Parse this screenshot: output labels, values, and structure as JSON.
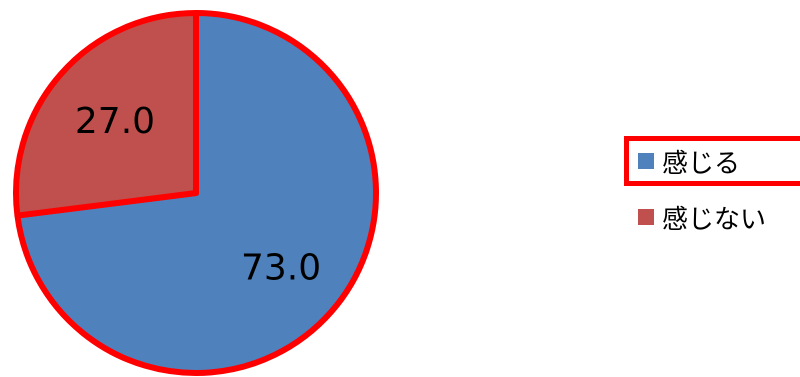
{
  "chart_data": {
    "type": "pie",
    "title": "",
    "categories": [
      "感じる",
      "感じない"
    ],
    "values": [
      73.0,
      27.0
    ],
    "value_labels": [
      "73.0",
      "27.0"
    ],
    "colors": [
      "#4f81bd",
      "#c0504d"
    ],
    "outline_color": "#ff0000",
    "start": "12 o'clock",
    "direction": "clockwise",
    "legend": {
      "placement": "right",
      "highlighted_entry": "感じる",
      "highlight_color": "#ff0000"
    }
  }
}
